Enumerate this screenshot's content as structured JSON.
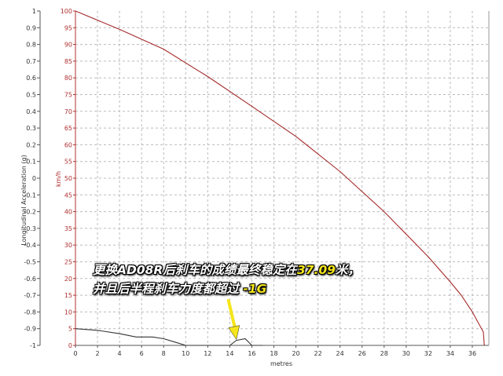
{
  "chart_data": {
    "type": "line",
    "xlabel": "metres",
    "ylabel_left": "Longitudinal Acceleration (g)",
    "ylabel_right": "km/h",
    "xlim": [
      0,
      37.5
    ],
    "ylim_left": [
      -1,
      1
    ],
    "ylim_right": [
      0,
      100
    ],
    "x_ticks": [
      "0",
      "2",
      "4",
      "6",
      "8",
      "10",
      "12",
      "14",
      "16",
      "18",
      "20",
      "22",
      "24",
      "26",
      "28",
      "30",
      "32",
      "34",
      "36"
    ],
    "y_left_ticks": [
      "1",
      "0.9",
      "0.8",
      "0.7",
      "0.6",
      "0.5",
      "0.4",
      "0.3",
      "0.2",
      "0.1",
      "0",
      "-0.1",
      "-0.2",
      "-0.3",
      "-0.4",
      "-0.5",
      "-0.6",
      "-0.7",
      "-0.8",
      "-0.9",
      "-1"
    ],
    "y_right_ticks": [
      "100",
      "95",
      "90",
      "85",
      "80",
      "75",
      "70",
      "65",
      "60",
      "55",
      "50",
      "45",
      "40",
      "35",
      "30",
      "25",
      "20",
      "15",
      "10",
      "5",
      "0"
    ],
    "grid": true,
    "series": [
      {
        "axis": "right",
        "color": "#a52a2a",
        "x": [
          0,
          4,
          8,
          12,
          16,
          20,
          24,
          28,
          32,
          34,
          35,
          36,
          37,
          37.09
        ],
        "y": [
          100,
          94.5,
          88.6,
          80.4,
          71.5,
          62.5,
          52,
          40,
          26.5,
          19,
          15,
          10,
          4,
          0
        ]
      },
      {
        "axis": "left",
        "color": "#333333",
        "x": [
          0,
          2,
          4,
          5.5,
          7,
          8,
          9,
          10,
          11,
          12,
          13,
          14,
          14.6,
          15.4,
          16,
          17
        ],
        "y": [
          -0.9,
          -0.91,
          -0.93,
          -0.95,
          -0.95,
          -0.96,
          -0.98,
          -1,
          -1,
          -1,
          -1,
          -1,
          -0.97,
          -0.96,
          -1,
          -1
        ]
      }
    ],
    "annotation": {
      "line1_parts": [
        "更换AD08R后刹车的成绩最终稳定在",
        "37.09",
        "米，"
      ],
      "line2_parts": [
        "并且后半程刹车力度都超过 ",
        "-1G"
      ],
      "arrow_color": "#f5e61a"
    }
  }
}
